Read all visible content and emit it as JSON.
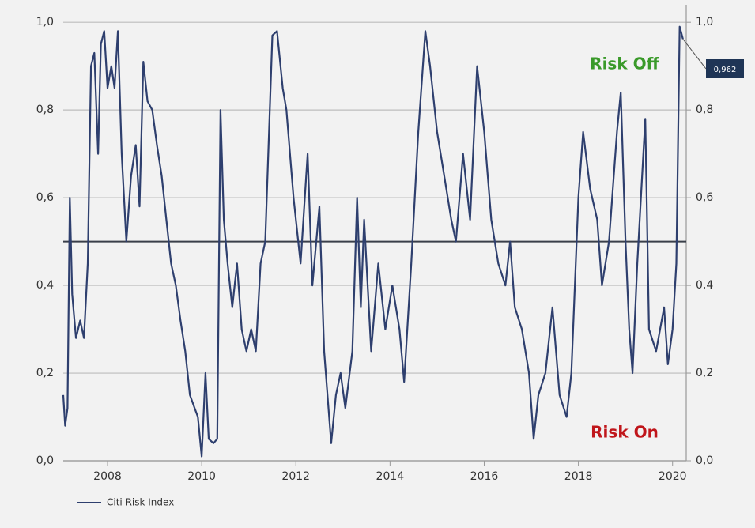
{
  "chart_data": {
    "type": "line",
    "x": [
      2007.06,
      2007.1,
      2007.15,
      2007.2,
      2007.25,
      2007.33,
      2007.42,
      2007.5,
      2007.58,
      2007.65,
      2007.72,
      2007.8,
      2007.86,
      2007.93,
      2008.0,
      2008.08,
      2008.15,
      2008.22,
      2008.3,
      2008.4,
      2008.5,
      2008.6,
      2008.68,
      2008.76,
      2008.85,
      2008.95,
      2009.05,
      2009.15,
      2009.25,
      2009.35,
      2009.45,
      2009.55,
      2009.65,
      2009.75,
      2009.85,
      2009.92,
      2010.0,
      2010.08,
      2010.15,
      2010.25,
      2010.33,
      2010.4,
      2010.47,
      2010.55,
      2010.65,
      2010.75,
      2010.85,
      2010.95,
      2011.05,
      2011.15,
      2011.25,
      2011.35,
      2011.5,
      2011.6,
      2011.72,
      2011.8,
      2011.95,
      2012.1,
      2012.25,
      2012.35,
      2012.5,
      2012.6,
      2012.75,
      2012.85,
      2012.95,
      2013.05,
      2013.2,
      2013.3,
      2013.38,
      2013.45,
      2013.6,
      2013.75,
      2013.9,
      2014.05,
      2014.2,
      2014.3,
      2014.45,
      2014.6,
      2014.75,
      2014.85,
      2015.0,
      2015.15,
      2015.3,
      2015.4,
      2015.55,
      2015.7,
      2015.85,
      2016.0,
      2016.15,
      2016.3,
      2016.45,
      2016.55,
      2016.65,
      2016.8,
      2016.95,
      2017.05,
      2017.15,
      2017.3,
      2017.45,
      2017.6,
      2017.75,
      2017.85,
      2018.0,
      2018.1,
      2018.25,
      2018.4,
      2018.5,
      2018.65,
      2018.82,
      2018.9,
      2019.0,
      2019.08,
      2019.15,
      2019.25,
      2019.42,
      2019.5,
      2019.65,
      2019.82,
      2019.9,
      2020.0,
      2020.08,
      2020.15,
      2020.22
    ],
    "series": [
      {
        "name": "Citi Risk Index",
        "color": "#2e3f6e",
        "values": [
          0.15,
          0.08,
          0.12,
          0.6,
          0.38,
          0.28,
          0.32,
          0.28,
          0.45,
          0.9,
          0.93,
          0.7,
          0.95,
          0.98,
          0.85,
          0.9,
          0.85,
          0.98,
          0.7,
          0.5,
          0.65,
          0.72,
          0.58,
          0.91,
          0.82,
          0.8,
          0.72,
          0.65,
          0.55,
          0.45,
          0.4,
          0.32,
          0.25,
          0.15,
          0.12,
          0.1,
          0.01,
          0.2,
          0.05,
          0.04,
          0.05,
          0.8,
          0.55,
          0.45,
          0.35,
          0.45,
          0.3,
          0.25,
          0.3,
          0.25,
          0.45,
          0.5,
          0.97,
          0.98,
          0.85,
          0.8,
          0.6,
          0.45,
          0.7,
          0.4,
          0.58,
          0.25,
          0.04,
          0.15,
          0.2,
          0.12,
          0.25,
          0.6,
          0.35,
          0.55,
          0.25,
          0.45,
          0.3,
          0.4,
          0.3,
          0.18,
          0.45,
          0.75,
          0.98,
          0.9,
          0.75,
          0.65,
          0.55,
          0.5,
          0.7,
          0.55,
          0.9,
          0.75,
          0.55,
          0.45,
          0.4,
          0.5,
          0.35,
          0.3,
          0.2,
          0.05,
          0.15,
          0.2,
          0.35,
          0.15,
          0.1,
          0.2,
          0.6,
          0.75,
          0.62,
          0.55,
          0.4,
          0.5,
          0.75,
          0.84,
          0.5,
          0.3,
          0.2,
          0.45,
          0.78,
          0.3,
          0.25,
          0.35,
          0.22,
          0.3,
          0.45,
          0.99,
          0.962
        ]
      }
    ],
    "xlim": [
      2007.06,
      2020.29
    ],
    "xticks": [
      2008,
      2010,
      2012,
      2014,
      2016,
      2018,
      2020
    ],
    "ylim": [
      0,
      1.04
    ],
    "yticks": [
      {
        "value": 0,
        "label": "0,0"
      },
      {
        "value": 0.2,
        "label": "0,2"
      },
      {
        "value": 0.4,
        "label": "0,4"
      },
      {
        "value": 0.6,
        "label": "0,6"
      },
      {
        "value": 0.8,
        "label": "0,8"
      },
      {
        "value": 1,
        "label": "1,0"
      }
    ],
    "y2lim": [
      0,
      1.04
    ],
    "y2ticks": [
      {
        "value": 0,
        "label": "0,0"
      },
      {
        "value": 0.2,
        "label": "0,2"
      },
      {
        "value": 0.4,
        "label": "0,4"
      },
      {
        "value": 0.6,
        "label": "0,6"
      },
      {
        "value": 0.8,
        "label": "0,8"
      },
      {
        "value": 1,
        "label": "1,0"
      }
    ],
    "grid": true,
    "reference_line": 0.5,
    "annotations": [
      {
        "text": "Risk Off",
        "color": "#3a9a2a"
      },
      {
        "text": "Risk On",
        "color": "#c0161b"
      }
    ],
    "callout": {
      "value": 0.962,
      "label": "0,962"
    }
  }
}
